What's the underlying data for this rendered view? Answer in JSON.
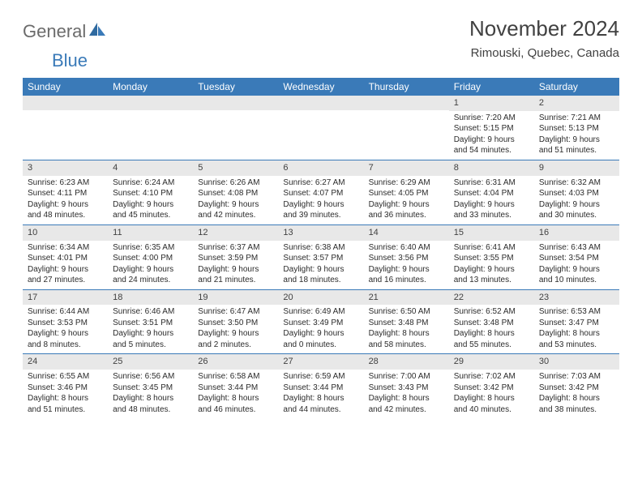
{
  "brand": {
    "part1": "General",
    "part2": "Blue"
  },
  "title": "November 2024",
  "location": "Rimouski, Quebec, Canada",
  "colors": {
    "header_bg": "#3a7ab8",
    "daynum_bg": "#e8e8e8",
    "text": "#2b2b2b",
    "logo_gray": "#6b6b6b"
  },
  "dayHeaders": [
    "Sunday",
    "Monday",
    "Tuesday",
    "Wednesday",
    "Thursday",
    "Friday",
    "Saturday"
  ],
  "weeks": [
    [
      {
        "n": "",
        "r": "",
        "s": "",
        "d": ""
      },
      {
        "n": "",
        "r": "",
        "s": "",
        "d": ""
      },
      {
        "n": "",
        "r": "",
        "s": "",
        "d": ""
      },
      {
        "n": "",
        "r": "",
        "s": "",
        "d": ""
      },
      {
        "n": "",
        "r": "",
        "s": "",
        "d": ""
      },
      {
        "n": "1",
        "r": "Sunrise: 7:20 AM",
        "s": "Sunset: 5:15 PM",
        "d": "Daylight: 9 hours and 54 minutes."
      },
      {
        "n": "2",
        "r": "Sunrise: 7:21 AM",
        "s": "Sunset: 5:13 PM",
        "d": "Daylight: 9 hours and 51 minutes."
      }
    ],
    [
      {
        "n": "3",
        "r": "Sunrise: 6:23 AM",
        "s": "Sunset: 4:11 PM",
        "d": "Daylight: 9 hours and 48 minutes."
      },
      {
        "n": "4",
        "r": "Sunrise: 6:24 AM",
        "s": "Sunset: 4:10 PM",
        "d": "Daylight: 9 hours and 45 minutes."
      },
      {
        "n": "5",
        "r": "Sunrise: 6:26 AM",
        "s": "Sunset: 4:08 PM",
        "d": "Daylight: 9 hours and 42 minutes."
      },
      {
        "n": "6",
        "r": "Sunrise: 6:27 AM",
        "s": "Sunset: 4:07 PM",
        "d": "Daylight: 9 hours and 39 minutes."
      },
      {
        "n": "7",
        "r": "Sunrise: 6:29 AM",
        "s": "Sunset: 4:05 PM",
        "d": "Daylight: 9 hours and 36 minutes."
      },
      {
        "n": "8",
        "r": "Sunrise: 6:31 AM",
        "s": "Sunset: 4:04 PM",
        "d": "Daylight: 9 hours and 33 minutes."
      },
      {
        "n": "9",
        "r": "Sunrise: 6:32 AM",
        "s": "Sunset: 4:03 PM",
        "d": "Daylight: 9 hours and 30 minutes."
      }
    ],
    [
      {
        "n": "10",
        "r": "Sunrise: 6:34 AM",
        "s": "Sunset: 4:01 PM",
        "d": "Daylight: 9 hours and 27 minutes."
      },
      {
        "n": "11",
        "r": "Sunrise: 6:35 AM",
        "s": "Sunset: 4:00 PM",
        "d": "Daylight: 9 hours and 24 minutes."
      },
      {
        "n": "12",
        "r": "Sunrise: 6:37 AM",
        "s": "Sunset: 3:59 PM",
        "d": "Daylight: 9 hours and 21 minutes."
      },
      {
        "n": "13",
        "r": "Sunrise: 6:38 AM",
        "s": "Sunset: 3:57 PM",
        "d": "Daylight: 9 hours and 18 minutes."
      },
      {
        "n": "14",
        "r": "Sunrise: 6:40 AM",
        "s": "Sunset: 3:56 PM",
        "d": "Daylight: 9 hours and 16 minutes."
      },
      {
        "n": "15",
        "r": "Sunrise: 6:41 AM",
        "s": "Sunset: 3:55 PM",
        "d": "Daylight: 9 hours and 13 minutes."
      },
      {
        "n": "16",
        "r": "Sunrise: 6:43 AM",
        "s": "Sunset: 3:54 PM",
        "d": "Daylight: 9 hours and 10 minutes."
      }
    ],
    [
      {
        "n": "17",
        "r": "Sunrise: 6:44 AM",
        "s": "Sunset: 3:53 PM",
        "d": "Daylight: 9 hours and 8 minutes."
      },
      {
        "n": "18",
        "r": "Sunrise: 6:46 AM",
        "s": "Sunset: 3:51 PM",
        "d": "Daylight: 9 hours and 5 minutes."
      },
      {
        "n": "19",
        "r": "Sunrise: 6:47 AM",
        "s": "Sunset: 3:50 PM",
        "d": "Daylight: 9 hours and 2 minutes."
      },
      {
        "n": "20",
        "r": "Sunrise: 6:49 AM",
        "s": "Sunset: 3:49 PM",
        "d": "Daylight: 9 hours and 0 minutes."
      },
      {
        "n": "21",
        "r": "Sunrise: 6:50 AM",
        "s": "Sunset: 3:48 PM",
        "d": "Daylight: 8 hours and 58 minutes."
      },
      {
        "n": "22",
        "r": "Sunrise: 6:52 AM",
        "s": "Sunset: 3:48 PM",
        "d": "Daylight: 8 hours and 55 minutes."
      },
      {
        "n": "23",
        "r": "Sunrise: 6:53 AM",
        "s": "Sunset: 3:47 PM",
        "d": "Daylight: 8 hours and 53 minutes."
      }
    ],
    [
      {
        "n": "24",
        "r": "Sunrise: 6:55 AM",
        "s": "Sunset: 3:46 PM",
        "d": "Daylight: 8 hours and 51 minutes."
      },
      {
        "n": "25",
        "r": "Sunrise: 6:56 AM",
        "s": "Sunset: 3:45 PM",
        "d": "Daylight: 8 hours and 48 minutes."
      },
      {
        "n": "26",
        "r": "Sunrise: 6:58 AM",
        "s": "Sunset: 3:44 PM",
        "d": "Daylight: 8 hours and 46 minutes."
      },
      {
        "n": "27",
        "r": "Sunrise: 6:59 AM",
        "s": "Sunset: 3:44 PM",
        "d": "Daylight: 8 hours and 44 minutes."
      },
      {
        "n": "28",
        "r": "Sunrise: 7:00 AM",
        "s": "Sunset: 3:43 PM",
        "d": "Daylight: 8 hours and 42 minutes."
      },
      {
        "n": "29",
        "r": "Sunrise: 7:02 AM",
        "s": "Sunset: 3:42 PM",
        "d": "Daylight: 8 hours and 40 minutes."
      },
      {
        "n": "30",
        "r": "Sunrise: 7:03 AM",
        "s": "Sunset: 3:42 PM",
        "d": "Daylight: 8 hours and 38 minutes."
      }
    ]
  ]
}
